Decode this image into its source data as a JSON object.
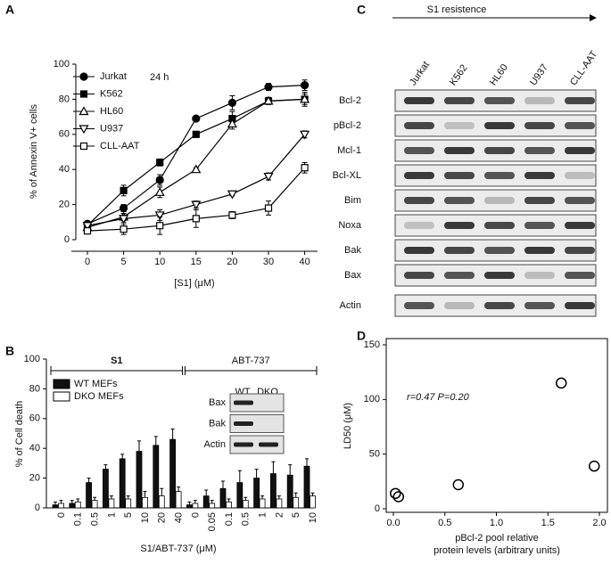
{
  "chart_data": [
    {
      "type": "line",
      "label": "A",
      "annotation": "24 h",
      "xlabel": "[S1] (μM)",
      "ylabel": "% of Annexin V+ cells",
      "categories": [
        "0",
        "5",
        "10",
        "15",
        "20",
        "30",
        "40"
      ],
      "ylim": [
        0,
        100
      ],
      "yticks": [
        0,
        20,
        40,
        60,
        80,
        100
      ],
      "series": [
        {
          "name": "Jurkat",
          "color": "#000000",
          "marker": "circle-filled",
          "values": [
            9,
            18,
            34,
            69,
            78,
            87,
            88
          ],
          "errors": [
            1,
            2,
            3,
            1,
            4,
            2,
            3
          ]
        },
        {
          "name": "K562",
          "color": "#000000",
          "marker": "square-filled",
          "values": [
            8,
            28,
            44,
            60,
            69,
            79,
            80
          ],
          "errors": [
            1,
            3,
            2,
            1,
            4,
            2,
            4
          ]
        },
        {
          "name": "HL60",
          "color": "#000000",
          "marker": "triangle-up-open",
          "values": [
            7,
            13,
            27,
            40,
            66,
            79,
            80
          ],
          "errors": [
            1,
            2,
            3,
            1,
            3,
            2,
            3
          ]
        },
        {
          "name": "U937",
          "color": "#000000",
          "marker": "triangle-down-open",
          "values": [
            8,
            12,
            14,
            20,
            26,
            36,
            60
          ],
          "errors": [
            1,
            2,
            3,
            2,
            1,
            2,
            2
          ]
        },
        {
          "name": "CLL-AAT",
          "color": "#000000",
          "marker": "square-open",
          "values": [
            5,
            6,
            8,
            12,
            14,
            18,
            41
          ],
          "errors": [
            1,
            3,
            5,
            5,
            2,
            4,
            3
          ]
        }
      ]
    },
    {
      "type": "bar",
      "label": "B",
      "xlabel": "S1/ABT-737 (μM)",
      "ylabel": "% of Cell death",
      "groups": [
        {
          "label": "S1",
          "categories": [
            "0",
            "0.1",
            "0.5",
            "1",
            "5",
            "10",
            "20",
            "40"
          ]
        },
        {
          "label": "ABT-737",
          "categories": [
            "0",
            "0.05",
            "0.1",
            "0.5",
            "1",
            "2",
            "5",
            "10"
          ]
        }
      ],
      "ylim": [
        0,
        100
      ],
      "yticks": [
        0,
        20,
        40,
        60,
        80,
        100
      ],
      "series": [
        {
          "name": "WT MEFs",
          "color": "#111111",
          "values": [
            2,
            3,
            17,
            26,
            33,
            38,
            42,
            46,
            2,
            8,
            13,
            17,
            20,
            23,
            22,
            28
          ],
          "errors": [
            2,
            2,
            3,
            3,
            3,
            7,
            6,
            7,
            2,
            4,
            5,
            8,
            6,
            8,
            7,
            5
          ]
        },
        {
          "name": "DKO MEFs",
          "color": "#ffffff",
          "values": [
            3,
            4,
            5,
            6,
            6,
            7,
            8,
            11,
            3,
            3,
            4,
            5,
            6,
            6,
            7,
            8
          ],
          "errors": [
            2,
            2,
            2,
            2,
            2,
            4,
            5,
            3,
            2,
            2,
            2,
            2,
            2,
            2,
            3,
            2
          ]
        }
      ],
      "inset": {
        "columns": [
          "WT",
          "DKO"
        ],
        "rows": [
          "Bax",
          "Bak",
          "Actin"
        ]
      }
    },
    {
      "type": "scatter",
      "label": "D",
      "annotation": "r=0.47  P=0.20",
      "xlabel": "pBcl-2 pool relative protein levels (arbitrary units)",
      "ylabel": "LD50 (μM)",
      "x": [
        0.02,
        0.05,
        0.63,
        1.63,
        1.95
      ],
      "values": [
        14,
        11,
        22,
        115,
        39
      ],
      "xlim": [
        0,
        2
      ],
      "xticks": [
        {
          "value": 0,
          "label": "0.0"
        },
        0.5,
        {
          "value": 1,
          "label": "1.0"
        },
        1.5,
        {
          "value": 2,
          "label": "2.0"
        }
      ],
      "ylim": [
        0,
        150
      ],
      "yticks": [
        0,
        50,
        100,
        150
      ]
    }
  ],
  "blot": {
    "label": "C",
    "title": "S1 resistence",
    "columns": [
      "Jurkat",
      "K562",
      "HL60",
      "U937",
      "CLL-AAT"
    ],
    "rows": [
      "Bcl-2",
      "pBcl-2",
      "Mcl-1",
      "Bcl-XL",
      "Bim",
      "Noxa",
      "Bak",
      "Bax",
      "Actin"
    ]
  }
}
